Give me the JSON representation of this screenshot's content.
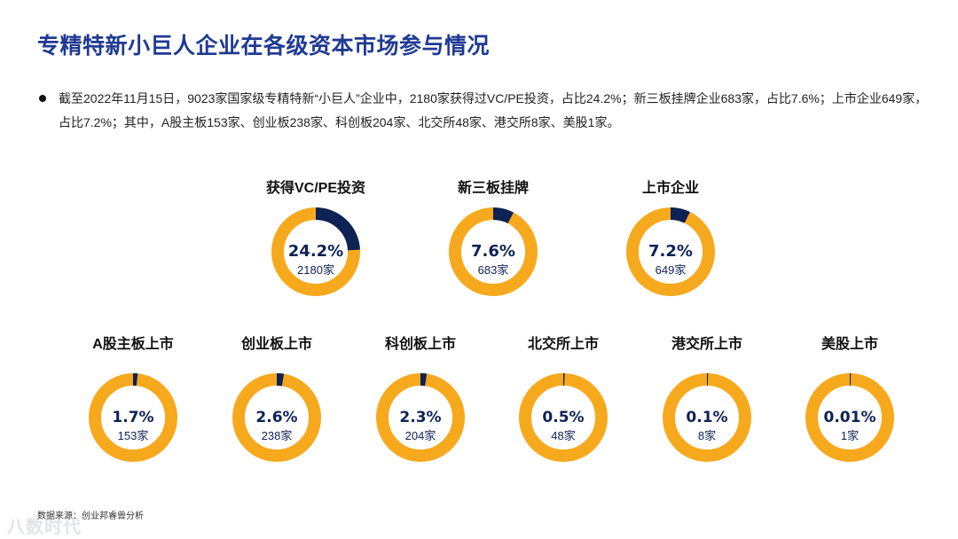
{
  "page": {
    "title": "专精特新小巨人企业在各级资本市场参与情况",
    "bullet": "截至2022年11月15日，9023家国家级专精特新“小巨人”企业中，2180家获得过VC/PE投资，占比24.2%；新三板挂牌企业683家，占比7.6%；上市企业649家，占比7.2%；其中，A股主板153家、创业板238家、科创板204家、北交所48家、港交所8家、美股1家。",
    "source": "数据来源：创业邦睿兽分析",
    "watermark": "八数时代"
  },
  "colors": {
    "ring": "#f7a91e",
    "fill": "#0d2255"
  },
  "chart_data": {
    "type": "pie",
    "variant": "donut",
    "items": [
      {
        "label": "获得VC/PE投资",
        "pct": 24.2,
        "pct_label": "24.2%",
        "count": "2180家"
      },
      {
        "label": "新三板挂牌",
        "pct": 7.6,
        "pct_label": "7.6%",
        "count": "683家"
      },
      {
        "label": "上市企业",
        "pct": 7.2,
        "pct_label": "7.2%",
        "count": "649家"
      },
      {
        "label": "A股主板上市",
        "pct": 1.7,
        "pct_label": "1.7%",
        "count": "153家"
      },
      {
        "label": "创业板上市",
        "pct": 2.6,
        "pct_label": "2.6%",
        "count": "238家"
      },
      {
        "label": "科创板上市",
        "pct": 2.3,
        "pct_label": "2.3%",
        "count": "204家"
      },
      {
        "label": "北交所上市",
        "pct": 0.5,
        "pct_label": "0.5%",
        "count": "48家"
      },
      {
        "label": "港交所上市",
        "pct": 0.1,
        "pct_label": "0.1%",
        "count": "8家"
      },
      {
        "label": "美股上市",
        "pct": 0.01,
        "pct_label": "0.01%",
        "count": "1家"
      }
    ]
  }
}
